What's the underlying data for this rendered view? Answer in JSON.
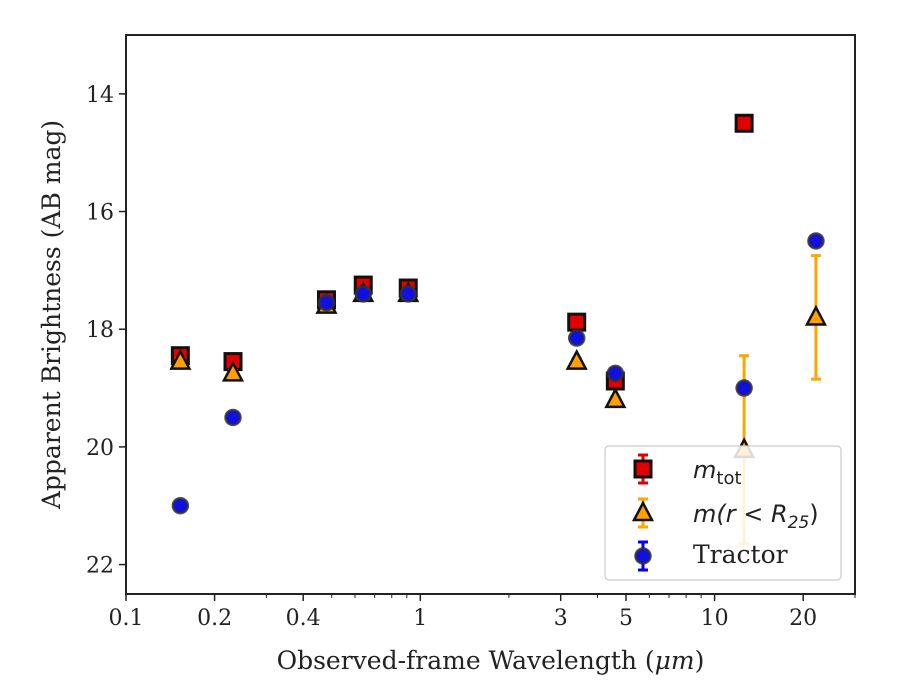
{
  "chart_data": {
    "type": "scatter",
    "xlabel_prefix": "Observed-frame Wavelength (",
    "xlabel_unit": "μm",
    "xlabel_suffix": ")",
    "ylabel": "Apparent Brightness (AB mag)",
    "xscale": "log",
    "xlim": [
      0.1,
      30
    ],
    "ylim": [
      22.5,
      13
    ],
    "y_inverted": true,
    "x_ticks": [
      {
        "value": 0.1,
        "label": "0.1"
      },
      {
        "value": 0.2,
        "label": "0.2"
      },
      {
        "value": 0.4,
        "label": "0.4"
      },
      {
        "value": 1,
        "label": "1"
      },
      {
        "value": 3,
        "label": "3"
      },
      {
        "value": 5,
        "label": "5"
      },
      {
        "value": 10,
        "label": "10"
      },
      {
        "value": 20,
        "label": "20"
      }
    ],
    "y_ticks": [
      {
        "value": 14,
        "label": "14"
      },
      {
        "value": 16,
        "label": "16"
      },
      {
        "value": 18,
        "label": "18"
      },
      {
        "value": 20,
        "label": "20"
      },
      {
        "value": 22,
        "label": "22"
      }
    ],
    "legend_position": "lower-right",
    "series": [
      {
        "name": "m_tot",
        "legend_main": "m",
        "legend_sub": "tot",
        "marker": "square",
        "color": "#e00000",
        "errcolor": "#e00000",
        "points": [
          {
            "x": 0.153,
            "y": 18.45,
            "err": 0.08
          },
          {
            "x": 0.231,
            "y": 18.55,
            "err": 0.08
          },
          {
            "x": 0.48,
            "y": 17.5,
            "err": 0.05
          },
          {
            "x": 0.64,
            "y": 17.25,
            "err": 0.05
          },
          {
            "x": 0.91,
            "y": 17.3,
            "err": 0.05
          },
          {
            "x": 3.4,
            "y": 17.88,
            "err": 0.05
          },
          {
            "x": 4.6,
            "y": 18.88,
            "err": 0.05
          },
          {
            "x": 12.6,
            "y": 14.5,
            "err": 0.05
          }
        ]
      },
      {
        "name": "m(r < R25)",
        "legend_main": "m(r < R",
        "legend_sub": "25",
        "legend_close": ")",
        "marker": "triangle",
        "color": "#ffa000",
        "errcolor": "#ffa500",
        "points": [
          {
            "x": 0.153,
            "y": 18.55,
            "err": 0.05
          },
          {
            "x": 0.231,
            "y": 18.75,
            "err": 0.05
          },
          {
            "x": 0.48,
            "y": 17.6,
            "err": 0.04
          },
          {
            "x": 0.64,
            "y": 17.4,
            "err": 0.04
          },
          {
            "x": 0.91,
            "y": 17.4,
            "err": 0.04
          },
          {
            "x": 3.4,
            "y": 18.55,
            "err": 0.05
          },
          {
            "x": 4.6,
            "y": 19.2,
            "err": 0.05
          },
          {
            "x": 12.6,
            "y": 20.05,
            "err": 1.6
          },
          {
            "x": 22.1,
            "y": 17.8,
            "err": 1.05
          }
        ]
      },
      {
        "name": "Tractor",
        "legend_main": "Tractor",
        "marker": "circle",
        "color": "#1010e0",
        "errcolor": "#0000ff",
        "points": [
          {
            "x": 0.153,
            "y": 21.0,
            "err": 0.08
          },
          {
            "x": 0.231,
            "y": 19.5,
            "err": 0.08
          },
          {
            "x": 0.48,
            "y": 17.55,
            "err": 0.05
          },
          {
            "x": 0.64,
            "y": 17.4,
            "err": 0.05
          },
          {
            "x": 0.91,
            "y": 17.4,
            "err": 0.05
          },
          {
            "x": 3.4,
            "y": 18.15,
            "err": 0.05
          },
          {
            "x": 4.6,
            "y": 18.75,
            "err": 0.08
          },
          {
            "x": 12.6,
            "y": 19.0,
            "err": 0.08
          },
          {
            "x": 22.1,
            "y": 16.5,
            "err": 0.05
          }
        ]
      }
    ]
  }
}
